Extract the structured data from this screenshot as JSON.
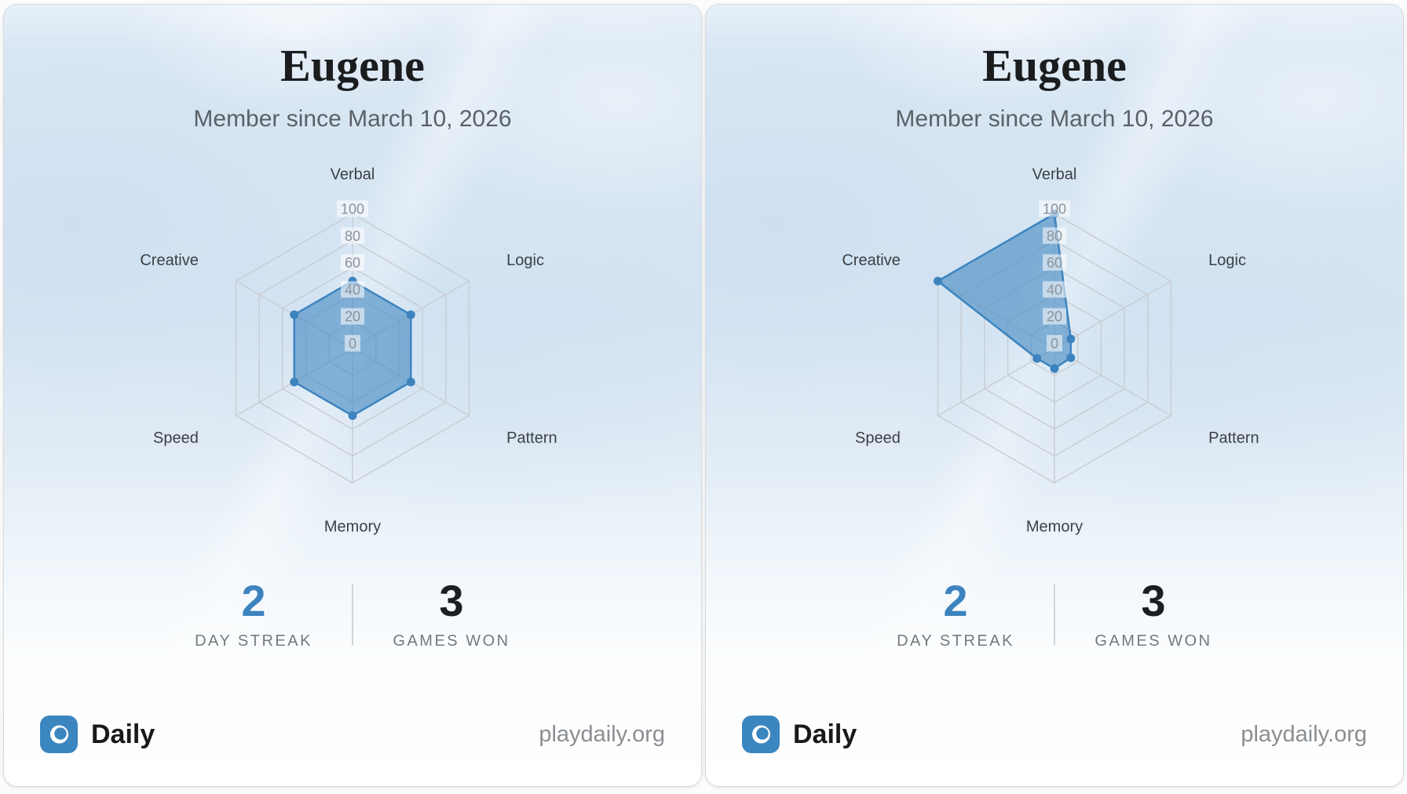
{
  "colors": {
    "accent": "#3d84bf",
    "title_text": "#1a1c1e",
    "subtitle_text": "#5a6167",
    "stat_value_dark": "#1c1e20",
    "stat_label": "#75797d",
    "footer_url": "#8a8e92",
    "card_border": "#d7dbde"
  },
  "cards": [
    {
      "title": "Eugene",
      "subtitle": "Member since March 10, 2026",
      "stats": [
        {
          "value": "2",
          "label": "DAY STREAK"
        },
        {
          "value": "3",
          "label": "GAMES WON"
        }
      ],
      "footer": {
        "brand": "Daily",
        "url": "playdaily.org",
        "logo_icon": "ring-icon"
      }
    },
    {
      "title": "Eugene",
      "subtitle": "Member since March 10, 2026",
      "stats": [
        {
          "value": "2",
          "label": "DAY STREAK"
        },
        {
          "value": "3",
          "label": "GAMES WON"
        }
      ],
      "footer": {
        "brand": "Daily",
        "url": "playdaily.org",
        "logo_icon": "ring-icon"
      }
    }
  ],
  "chart_data": [
    {
      "type": "radar",
      "title": "",
      "categories": [
        "Verbal",
        "Logic",
        "Pattern",
        "Memory",
        "Speed",
        "Creative"
      ],
      "values": [
        50,
        50,
        50,
        50,
        50,
        50
      ],
      "rmin": 0,
      "rmax": 100,
      "ticks": [
        0,
        20,
        40,
        60,
        80,
        100
      ],
      "grid": true,
      "legend": false,
      "line_color": "#3d84bf",
      "fill_color": "rgba(61,132,191,0.58)",
      "grid_color": "#c8ccd1",
      "tick_color": "#8d9299",
      "label_color": "#3c4045"
    },
    {
      "type": "radar",
      "title": "",
      "categories": [
        "Verbal",
        "Logic",
        "Pattern",
        "Memory",
        "Speed",
        "Creative"
      ],
      "values": [
        100,
        14,
        14,
        15,
        15,
        100
      ],
      "rmin": 0,
      "rmax": 100,
      "ticks": [
        0,
        20,
        40,
        60,
        80,
        100
      ],
      "grid": true,
      "legend": false,
      "line_color": "#3d84bf",
      "fill_color": "rgba(61,132,191,0.58)",
      "grid_color": "#c8ccd1",
      "tick_color": "#8d9299",
      "label_color": "#3c4045"
    }
  ]
}
